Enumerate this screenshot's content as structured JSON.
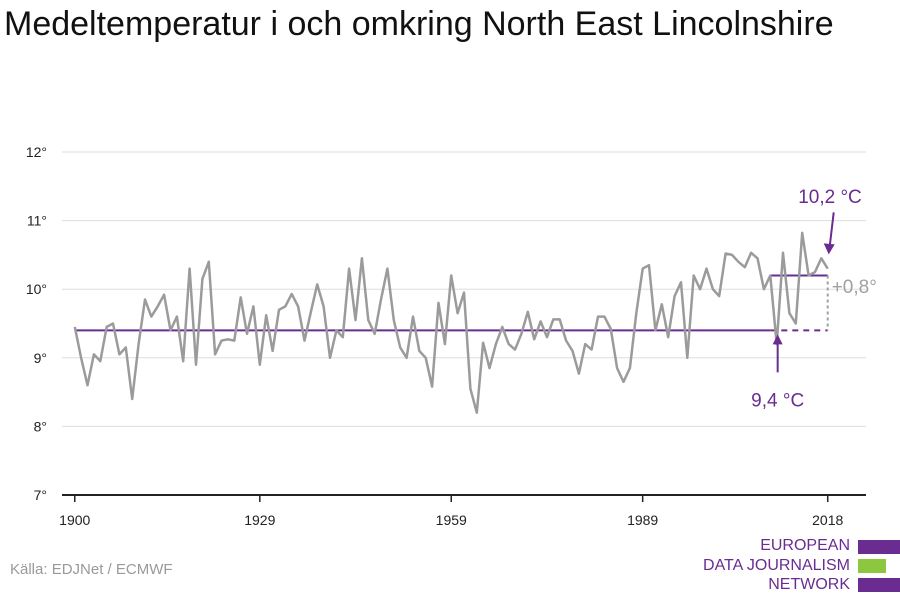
{
  "title": "Medeltemperatur i och omkring North East Lincolnshire",
  "source": "Källa: EDJNet / ECMWF",
  "logo": {
    "lines": [
      "EUROPEAN",
      "DATA JOURNALISM",
      "NETWORK"
    ]
  },
  "colors": {
    "series": "#9b9b9b",
    "baseline": "#6a2c91",
    "accent_green": "#8dc63f",
    "grid": "#dddddd",
    "axis": "#222222",
    "annotation_gray": "#a0a0a0"
  },
  "chart_data": {
    "type": "line",
    "title": "Medeltemperatur i och omkring North East Lincolnshire",
    "xlabel": "",
    "ylabel": "",
    "xlim": [
      1898,
      2024
    ],
    "ylim": [
      7,
      12
    ],
    "xticks": [
      1900,
      1929,
      1959,
      1989,
      2018
    ],
    "xtick_labels": [
      "1900",
      "1929",
      "1959",
      "1989",
      "2018"
    ],
    "yticks": [
      7,
      8,
      9,
      10,
      11,
      12
    ],
    "ytick_labels": [
      "7°",
      "8°",
      "9°",
      "10°",
      "11°",
      "12°"
    ],
    "grid": true,
    "series": [
      {
        "x": [
          1900,
          1901,
          1902,
          1903,
          1904,
          1905,
          1906,
          1907,
          1908,
          1909,
          1910,
          1911,
          1912,
          1913,
          1914,
          1915,
          1916,
          1917,
          1918,
          1919,
          1920,
          1921,
          1922,
          1923,
          1924,
          1925,
          1926,
          1927,
          1928,
          1929,
          1930,
          1931,
          1932,
          1933,
          1934,
          1935,
          1936,
          1937,
          1938,
          1939,
          1940,
          1941,
          1942,
          1943,
          1944,
          1945,
          1946,
          1947,
          1948,
          1949,
          1950,
          1951,
          1952,
          1953,
          1954,
          1955,
          1956,
          1957,
          1958,
          1959,
          1960,
          1961,
          1962,
          1963,
          1964,
          1965,
          1966,
          1967,
          1968,
          1969,
          1970,
          1971,
          1972,
          1973,
          1974,
          1975,
          1976,
          1977,
          1978,
          1979,
          1980,
          1981,
          1982,
          1983,
          1984,
          1985,
          1986,
          1987,
          1988,
          1989,
          1990,
          1991,
          1992,
          1993,
          1994,
          1995,
          1996,
          1997,
          1998,
          1999,
          2000,
          2001,
          2002,
          2003,
          2004,
          2005,
          2006,
          2007,
          2008,
          2009,
          2010,
          2011,
          2012,
          2013,
          2014,
          2015,
          2016,
          2017,
          2018
        ],
        "values": [
          9.45,
          9.0,
          8.6,
          9.05,
          8.95,
          9.45,
          9.5,
          9.05,
          9.15,
          8.4,
          9.2,
          9.85,
          9.6,
          9.75,
          9.92,
          9.4,
          9.6,
          8.95,
          10.3,
          8.9,
          10.15,
          10.4,
          9.05,
          9.25,
          9.27,
          9.25,
          9.88,
          9.35,
          9.75,
          8.9,
          9.62,
          9.1,
          9.7,
          9.75,
          9.93,
          9.75,
          9.25,
          9.67,
          10.07,
          9.75,
          9.0,
          9.4,
          9.3,
          10.3,
          9.55,
          10.45,
          9.55,
          9.35,
          9.85,
          10.3,
          9.55,
          9.15,
          9.0,
          9.6,
          9.1,
          9.0,
          8.58,
          9.8,
          9.2,
          10.2,
          9.65,
          9.95,
          8.55,
          8.2,
          9.22,
          8.85,
          9.2,
          9.45,
          9.2,
          9.12,
          9.35,
          9.67,
          9.27,
          9.53,
          9.3,
          9.56,
          9.56,
          9.25,
          9.1,
          8.77,
          9.2,
          9.12,
          9.6,
          9.6,
          9.42,
          8.85,
          8.65,
          8.85,
          9.65,
          10.3,
          10.35,
          9.4,
          9.78,
          9.3,
          9.9,
          10.1,
          9.0,
          10.2,
          10.0,
          10.3,
          10.0,
          9.9,
          10.52,
          10.5,
          10.4,
          10.32,
          10.53,
          10.45,
          10.0,
          10.2,
          9.2,
          10.53,
          9.65,
          9.5,
          10.82,
          10.2,
          10.25,
          10.45,
          10.3
        ]
      }
    ],
    "baseline": {
      "from": 1900,
      "to": 2009,
      "value": 9.4,
      "extended_to": 2018
    },
    "recent_mean": {
      "from": 2009,
      "to": 2018,
      "value": 10.2
    },
    "annotations": {
      "baseline_label": "9,4 °C",
      "recent_label": "10,2 °C",
      "difference_label": "+0,8°"
    }
  }
}
